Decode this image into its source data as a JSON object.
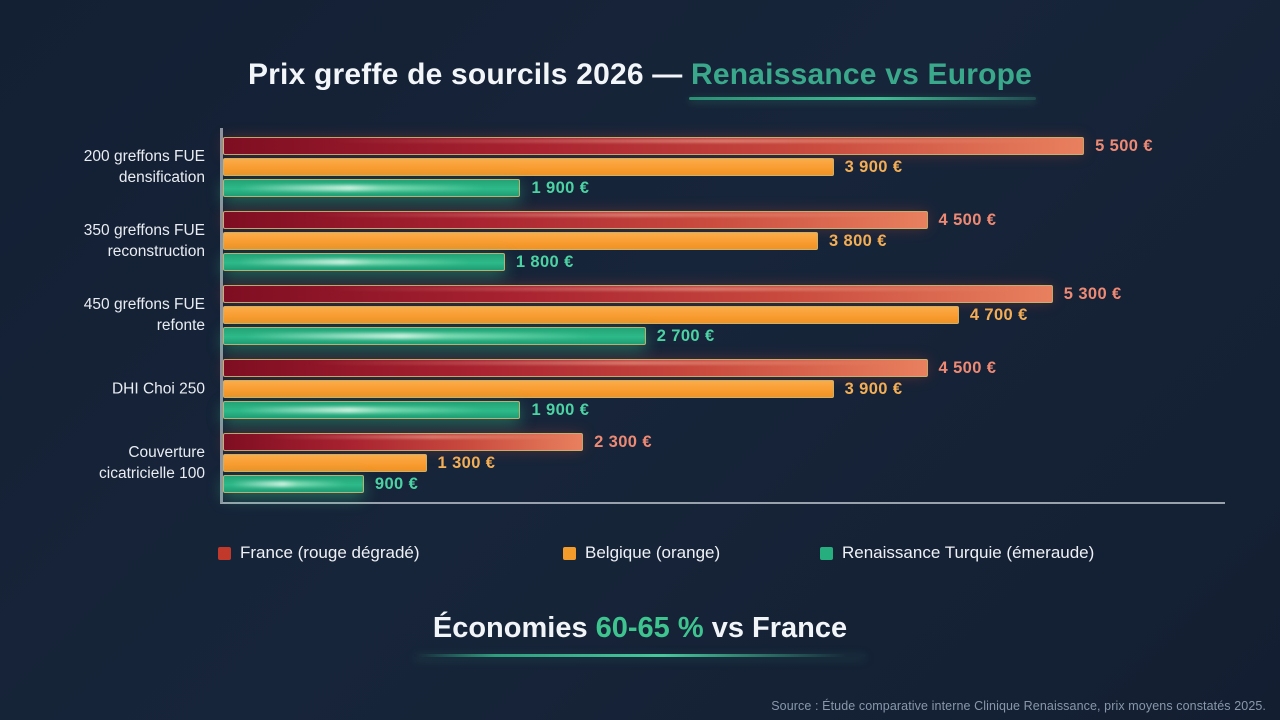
{
  "title": {
    "main": "Prix greffe de sourcils 2026 — ",
    "accent": "Renaissance vs Europe"
  },
  "chart_data": {
    "type": "bar",
    "orientation": "horizontal",
    "title": "Prix greffe de sourcils 2026 — Renaissance vs Europe",
    "xlabel": "",
    "ylabel": "",
    "unit": "EUR",
    "xlim": [
      0,
      6400
    ],
    "grid": false,
    "legend_position": "bottom",
    "value_labels": true,
    "categories": [
      "200 greffons FUE densification",
      "350 greffons FUE reconstruction",
      "450 greffons FUE refonte",
      "DHI Choi 250",
      "Couverture cicatricielle 100"
    ],
    "category_lines": [
      [
        "200 greffons FUE",
        "densification"
      ],
      [
        "350 greffons FUE",
        "reconstruction"
      ],
      [
        "450 greffons FUE",
        "refonte"
      ],
      [
        "DHI Choi 250"
      ],
      [
        "Couverture",
        "cicatricielle 100"
      ]
    ],
    "series": [
      {
        "key": "france",
        "name": "France (rouge dégradé)",
        "color_start": "#7f0e22",
        "color_end": "#e8805e",
        "legend_color": "#c0392b",
        "values": [
          5500,
          4500,
          5300,
          4500,
          2300
        ],
        "labels": [
          "5 500 €",
          "4 500 €",
          "5 300 €",
          "4 500 €",
          "2 300 €"
        ]
      },
      {
        "key": "belgique",
        "name": "Belgique (orange)",
        "color_start": "#fcab49",
        "color_end": "#f09126",
        "legend_color": "#f39c2b",
        "values": [
          3900,
          3800,
          4700,
          3900,
          1300
        ],
        "labels": [
          "3 900 €",
          "3 800 €",
          "4 700 €",
          "3 900 €",
          "1 300 €"
        ]
      },
      {
        "key": "renaissance",
        "name": "Renaissance Turquie (émeraude)",
        "color_start": "#23a375",
        "color_end": "#2eba8a",
        "legend_color": "#27ae7e",
        "values": [
          1900,
          1800,
          2700,
          1900,
          900
        ],
        "labels": [
          "1 900 €",
          "1 800 €",
          "2 700 €",
          "1 900 €",
          "900 €"
        ]
      }
    ]
  },
  "headline": {
    "pre": "Économies ",
    "highlight": "60-65 %",
    "post": " vs France"
  },
  "source": "Source : Étude comparative interne Clinique Renaissance, prix moyens constatés 2025.",
  "colors": {
    "background": "#16243a",
    "accent_teal": "#3aa98b",
    "highlight_green": "#3ec48f",
    "bar_border": "#c9b26e",
    "axis": "#99a1ad",
    "value_france": "#ee8a74",
    "value_belgique": "#f5b056",
    "value_renaissance": "#4cd3a4"
  }
}
